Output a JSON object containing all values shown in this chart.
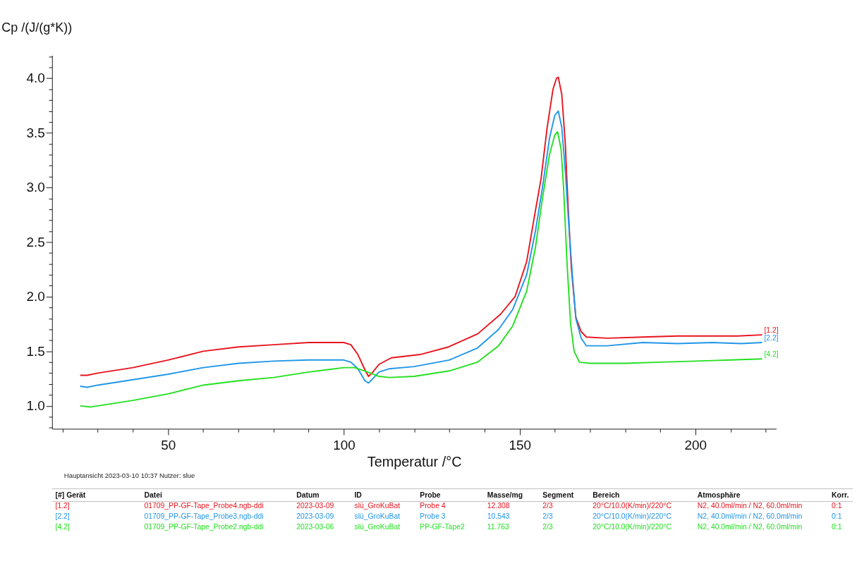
{
  "chart_data": {
    "type": "line",
    "xlabel": "Temperatur /°C",
    "ylabel": "Cp /(J/(g*K))",
    "xlim": [
      17,
      223
    ],
    "ylim": [
      0.79,
      4.21
    ],
    "xticks": [
      {
        "value": 20,
        "label": null
      },
      {
        "value": 30,
        "label": null
      },
      {
        "value": 40,
        "label": null
      },
      50,
      {
        "value": 60,
        "label": null
      },
      {
        "value": 70,
        "label": null
      },
      {
        "value": 80,
        "label": null
      },
      {
        "value": 90,
        "label": null
      },
      100,
      {
        "value": 110,
        "label": null
      },
      {
        "value": 120,
        "label": null
      },
      {
        "value": 130,
        "label": null
      },
      {
        "value": 140,
        "label": null
      },
      150,
      {
        "value": 160,
        "label": null
      },
      {
        "value": 170,
        "label": null
      },
      {
        "value": 180,
        "label": null
      },
      {
        "value": 190,
        "label": null
      },
      200,
      {
        "value": 210,
        "label": null
      },
      {
        "value": 220,
        "label": null
      }
    ],
    "yticks": [
      {
        "value": 0.8,
        "label": null
      },
      {
        "value": 0.9,
        "label": null
      },
      {
        "value": 1.0,
        "label": "1.0"
      },
      {
        "value": 1.1,
        "label": null
      },
      {
        "value": 1.2,
        "label": null
      },
      {
        "value": 1.3,
        "label": null
      },
      {
        "value": 1.4,
        "label": null
      },
      1.5,
      {
        "value": 1.6,
        "label": null
      },
      {
        "value": 1.7,
        "label": null
      },
      {
        "value": 1.8,
        "label": null
      },
      {
        "value": 1.9,
        "label": null
      },
      {
        "value": 2.0,
        "label": "2.0"
      },
      {
        "value": 2.1,
        "label": null
      },
      {
        "value": 2.2,
        "label": null
      },
      {
        "value": 2.3,
        "label": null
      },
      {
        "value": 2.4,
        "label": null
      },
      2.5,
      {
        "value": 2.6,
        "label": null
      },
      {
        "value": 2.7,
        "label": null
      },
      {
        "value": 2.8,
        "label": null
      },
      {
        "value": 2.9,
        "label": null
      },
      {
        "value": 3.0,
        "label": "3.0"
      },
      {
        "value": 3.1,
        "label": null
      },
      {
        "value": 3.2,
        "label": null
      },
      {
        "value": 3.3,
        "label": null
      },
      {
        "value": 3.4,
        "label": null
      },
      3.5,
      {
        "value": 3.6,
        "label": null
      },
      {
        "value": 3.7,
        "label": null
      },
      {
        "value": 3.8,
        "label": null
      },
      {
        "value": 3.9,
        "label": null
      },
      {
        "value": 4.0,
        "label": "4.0"
      },
      {
        "value": 4.1,
        "label": null
      },
      {
        "value": 4.2,
        "label": null
      }
    ],
    "grid": false,
    "legend": false,
    "marker": "none",
    "line_style": "solid",
    "series": [
      {
        "name": "[1.2]",
        "color": "#e8141e",
        "x": [
          25,
          27,
          30,
          40,
          50,
          60,
          70,
          80,
          90,
          100,
          102,
          104,
          106,
          107,
          108,
          110,
          113.5,
          121.7,
          129.8,
          138.1,
          144.6,
          148.7,
          152,
          154.4,
          156.1,
          157.8,
          159.5,
          160.5,
          161,
          162,
          163,
          163.5,
          164,
          164.7,
          166,
          167.5,
          169,
          175,
          185,
          195,
          205,
          212,
          219
        ],
        "values": [
          1.28,
          1.28,
          1.3,
          1.35,
          1.42,
          1.5,
          1.54,
          1.56,
          1.58,
          1.58,
          1.56,
          1.47,
          1.33,
          1.27,
          1.3,
          1.38,
          1.44,
          1.47,
          1.54,
          1.66,
          1.84,
          2.0,
          2.32,
          2.77,
          3.08,
          3.54,
          3.9,
          4.0,
          4.01,
          3.85,
          3.4,
          3.03,
          2.7,
          2.27,
          1.81,
          1.68,
          1.63,
          1.62,
          1.63,
          1.64,
          1.64,
          1.64,
          1.65
        ]
      },
      {
        "name": "[2.2]",
        "color": "#2196e8",
        "x": [
          25,
          27,
          30,
          40,
          50,
          60,
          70,
          80,
          90,
          100,
          102,
          104,
          106,
          107,
          108,
          110,
          113,
          120,
          130,
          138,
          144,
          148,
          152,
          154.5,
          156.5,
          158.5,
          160,
          161,
          162,
          163,
          164,
          165,
          166,
          167.5,
          169,
          175,
          185,
          195,
          205,
          213,
          219
        ],
        "values": [
          1.18,
          1.17,
          1.19,
          1.24,
          1.29,
          1.35,
          1.39,
          1.41,
          1.42,
          1.42,
          1.4,
          1.34,
          1.23,
          1.21,
          1.24,
          1.31,
          1.34,
          1.36,
          1.42,
          1.53,
          1.7,
          1.88,
          2.2,
          2.6,
          3.0,
          3.45,
          3.66,
          3.7,
          3.55,
          3.15,
          2.65,
          2.2,
          1.8,
          1.62,
          1.55,
          1.55,
          1.58,
          1.57,
          1.58,
          1.57,
          1.58
        ]
      },
      {
        "name": "[4.2]",
        "color": "#22e020",
        "x": [
          25,
          28,
          30,
          40,
          50,
          60,
          70,
          80,
          90,
          95,
          100,
          103,
          106,
          110,
          113,
          120,
          130,
          138,
          144,
          148,
          152,
          154.5,
          156.5,
          158.5,
          160,
          160.8,
          161.8,
          162.5,
          163.5,
          164.5,
          165.5,
          167,
          170,
          180,
          190,
          200,
          210,
          219
        ],
        "values": [
          1.0,
          0.99,
          1.0,
          1.05,
          1.11,
          1.19,
          1.23,
          1.26,
          1.31,
          1.33,
          1.35,
          1.35,
          1.32,
          1.27,
          1.26,
          1.27,
          1.32,
          1.4,
          1.55,
          1.73,
          2.05,
          2.45,
          2.9,
          3.3,
          3.48,
          3.51,
          3.35,
          3.0,
          2.3,
          1.75,
          1.5,
          1.4,
          1.39,
          1.39,
          1.4,
          1.41,
          1.42,
          1.43
        ]
      }
    ],
    "annotations": [
      "Hauptansicht   2023-03-10 10:37   Nutzer: slue",
      "[#] Gerät",
      "Datei",
      "Datum",
      "ID",
      "Probe",
      "Masse/mg",
      "Segment",
      "Bereich",
      "Atmosphäre",
      "Korr.",
      "[1.2]",
      "01709_PP-GF-Tape_Probe4.ngb-ddi",
      "2023-03-09",
      "slü_GroKuBat",
      "Probe 4",
      "12.308",
      "2/3",
      "20°C/10.0(K/min)/220°C",
      "N2, 40.0ml/min / N2, 60.0ml/min",
      "0:1",
      "[2.2]",
      "01709_PP-GF-Tape_Probe3.ngb-ddi",
      "2023-03-09",
      "slü_GroKuBat",
      "Probe 3",
      "10.543",
      "2/3",
      "20°C/10.0(K/min)/220°C",
      "N2, 40.0ml/min / N2, 60.0ml/min",
      "0:1",
      "[4.2]",
      "01709_PP-GF-Tape_Probe2.ngb-ddi",
      "2023-03-06",
      "slü_GroKuBat",
      "PP-GF-Tape2",
      "11.763",
      "2/3",
      "20°C/10.0(K/min)/220°C",
      "N2, 40.0ml/min / N2, 60.0ml/min",
      "0:1"
    ]
  }
}
